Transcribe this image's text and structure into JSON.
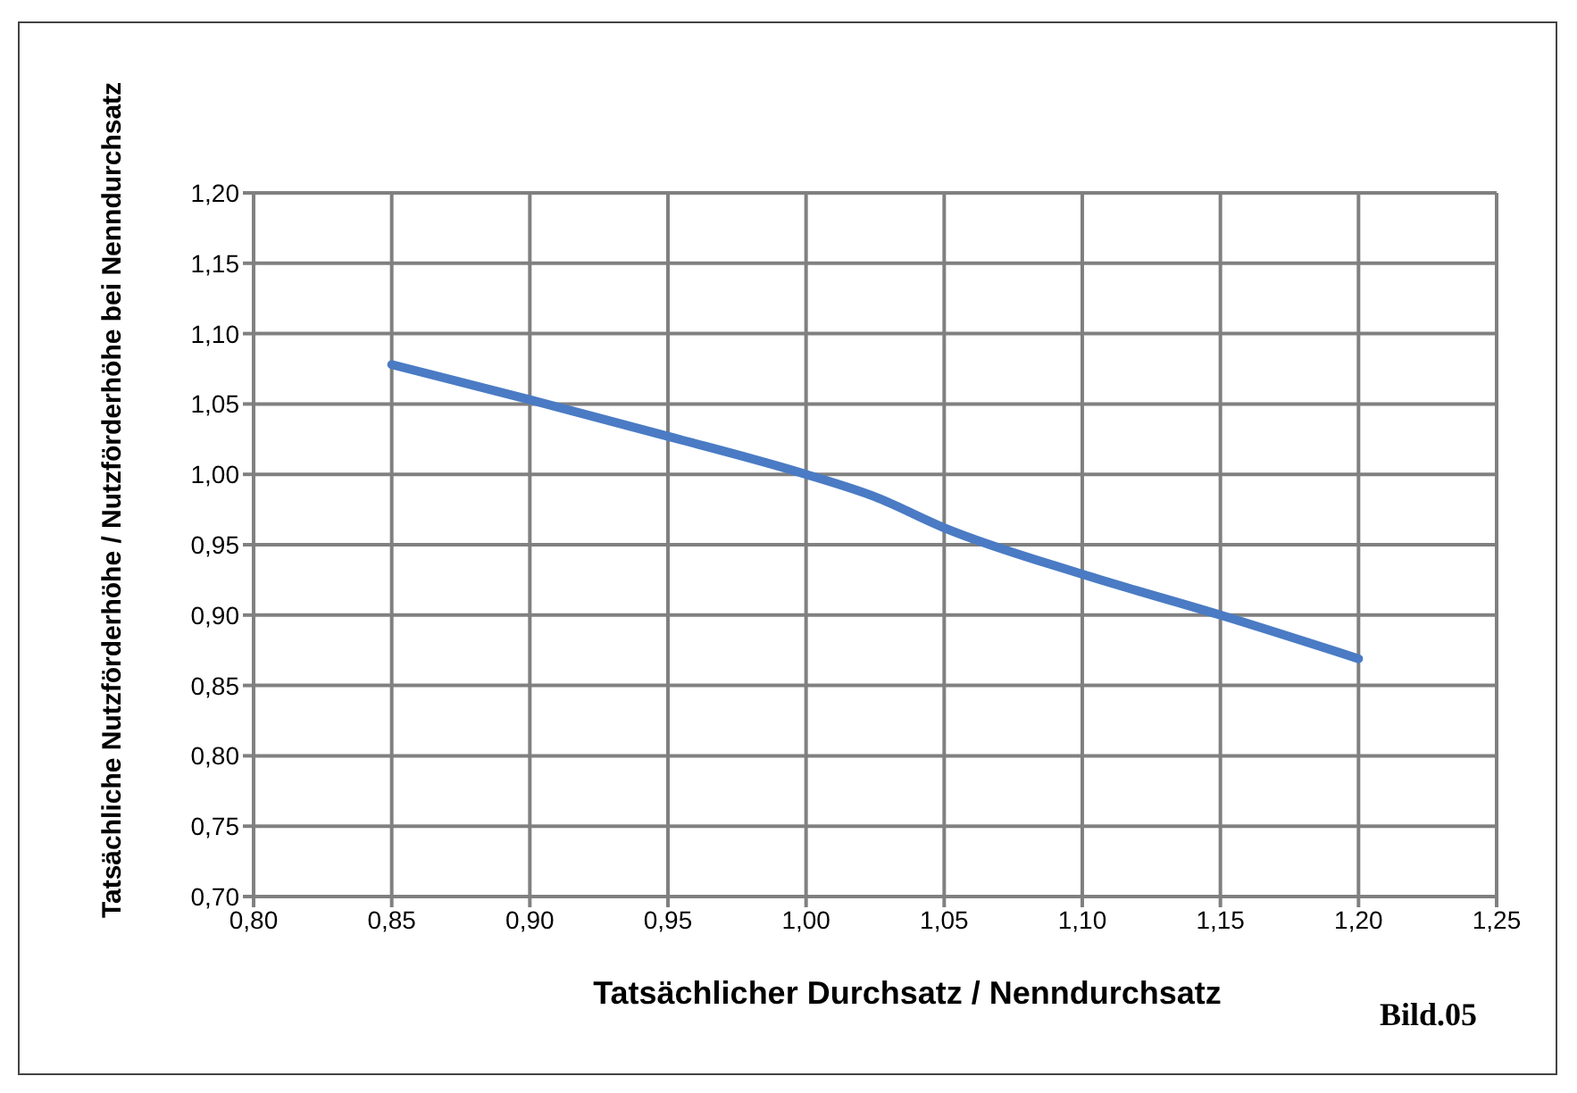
{
  "chart_data": {
    "type": "line",
    "xlabel": "Tatsächlicher Durchsatz / Nenndurchsatz",
    "ylabel": "Tatsächliche Nutzförderhöhe / Nutzförderhöhe bei Nenndurchsatz",
    "annotations": [
      "Bild.05"
    ],
    "series": [
      {
        "color": "#4a7bc4",
        "x": [
          0.85,
          0.9,
          0.95,
          1.0,
          1.025,
          1.05,
          1.1,
          1.15,
          1.2
        ],
        "values": [
          1.078,
          1.053,
          1.027,
          1.0,
          0.984,
          0.962,
          0.929,
          0.9,
          0.869
        ]
      }
    ],
    "xlim": [
      0.8,
      1.25
    ],
    "xticks": [
      {
        "value": 0.8,
        "label": "0,80"
      },
      {
        "value": 0.85,
        "label": "0,85"
      },
      {
        "value": 0.9,
        "label": "0,90"
      },
      {
        "value": 0.95,
        "label": "0,95"
      },
      {
        "value": 1.0,
        "label": "1,00"
      },
      {
        "value": 1.05,
        "label": "1,05"
      },
      {
        "value": 1.1,
        "label": "1,10"
      },
      {
        "value": 1.15,
        "label": "1,15"
      },
      {
        "value": 1.2,
        "label": "1,20"
      },
      {
        "value": 1.25,
        "label": "1,25"
      }
    ],
    "ylim": [
      0.7,
      1.2
    ],
    "yticks": [
      {
        "value": 0.7,
        "label": "0,70"
      },
      {
        "value": 0.75,
        "label": "0,75"
      },
      {
        "value": 0.8,
        "label": "0,80"
      },
      {
        "value": 0.85,
        "label": "0,85"
      },
      {
        "value": 0.9,
        "label": "0,90"
      },
      {
        "value": 0.95,
        "label": "0,95"
      },
      {
        "value": 1.0,
        "label": "1,00"
      },
      {
        "value": 1.05,
        "label": "1,05"
      },
      {
        "value": 1.1,
        "label": "1,10"
      },
      {
        "value": 1.15,
        "label": "1,15"
      },
      {
        "value": 1.2,
        "label": "1,20"
      }
    ],
    "grid": true,
    "legend": false,
    "marker": "none",
    "line_style": "solid"
  }
}
